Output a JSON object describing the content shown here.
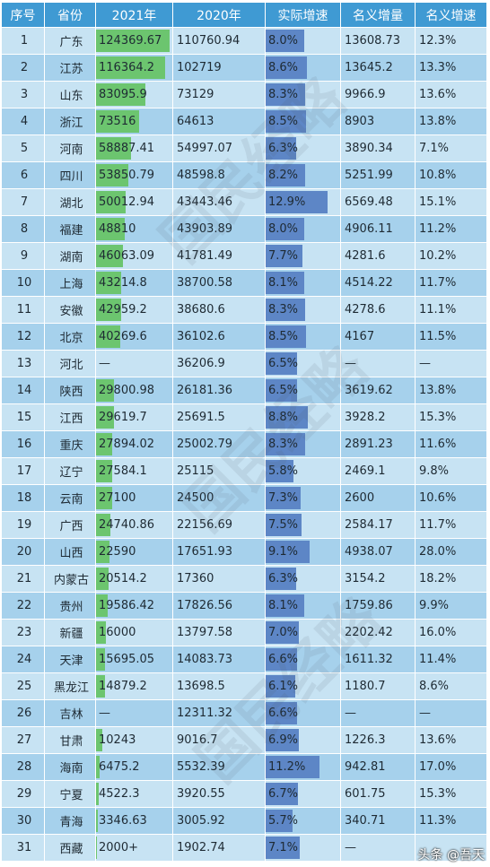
{
  "headers": [
    "序号",
    "省份",
    "2021年",
    "2020年",
    "实际增速",
    "名义增量",
    "名义增速"
  ],
  "rows": [
    {
      "idx": "1",
      "prov": "广东",
      "y21": "124369.67",
      "y21v": 124369.67,
      "y20": "110760.94",
      "real": "8.0%",
      "realv": 8.0,
      "nom": "13608.73",
      "nrate": "12.3%"
    },
    {
      "idx": "2",
      "prov": "江苏",
      "y21": "116364.2",
      "y21v": 116364.2,
      "y20": "102719",
      "real": "8.6%",
      "realv": 8.6,
      "nom": "13645.2",
      "nrate": "13.3%"
    },
    {
      "idx": "3",
      "prov": "山东",
      "y21": "83095.9",
      "y21v": 83095.9,
      "y20": "73129",
      "real": "8.3%",
      "realv": 8.3,
      "nom": "9966.9",
      "nrate": "13.6%"
    },
    {
      "idx": "4",
      "prov": "浙江",
      "y21": "73516",
      "y21v": 73516,
      "y20": "64613",
      "real": "8.5%",
      "realv": 8.5,
      "nom": "8903",
      "nrate": "13.8%"
    },
    {
      "idx": "5",
      "prov": "河南",
      "y21": "58887.41",
      "y21v": 58887.41,
      "y20": "54997.07",
      "real": "6.3%",
      "realv": 6.3,
      "nom": "3890.34",
      "nrate": "7.1%"
    },
    {
      "idx": "6",
      "prov": "四川",
      "y21": "53850.79",
      "y21v": 53850.79,
      "y20": "48598.8",
      "real": "8.2%",
      "realv": 8.2,
      "nom": "5251.99",
      "nrate": "10.8%"
    },
    {
      "idx": "7",
      "prov": "湖北",
      "y21": "50012.94",
      "y21v": 50012.94,
      "y20": "43443.46",
      "real": "12.9%",
      "realv": 12.9,
      "nom": "6569.48",
      "nrate": "15.1%"
    },
    {
      "idx": "8",
      "prov": "福建",
      "y21": "48810",
      "y21v": 48810,
      "y20": "43903.89",
      "real": "8.0%",
      "realv": 8.0,
      "nom": "4906.11",
      "nrate": "11.2%"
    },
    {
      "idx": "9",
      "prov": "湖南",
      "y21": "46063.09",
      "y21v": 46063.09,
      "y20": "41781.49",
      "real": "7.7%",
      "realv": 7.7,
      "nom": "4281.6",
      "nrate": "10.2%"
    },
    {
      "idx": "10",
      "prov": "上海",
      "y21": "43214.8",
      "y21v": 43214.8,
      "y20": "38700.58",
      "real": "8.1%",
      "realv": 8.1,
      "nom": "4514.22",
      "nrate": "11.7%"
    },
    {
      "idx": "11",
      "prov": "安徽",
      "y21": "42959.2",
      "y21v": 42959.2,
      "y20": "38680.6",
      "real": "8.3%",
      "realv": 8.3,
      "nom": "4278.6",
      "nrate": "11.1%"
    },
    {
      "idx": "12",
      "prov": "北京",
      "y21": "40269.6",
      "y21v": 40269.6,
      "y20": "36102.6",
      "real": "8.5%",
      "realv": 8.5,
      "nom": "4167",
      "nrate": "11.5%"
    },
    {
      "idx": "13",
      "prov": "河北",
      "y21": "—",
      "y21v": 0,
      "y20": "36206.9",
      "real": "6.5%",
      "realv": 6.5,
      "nom": "—",
      "nrate": "—"
    },
    {
      "idx": "14",
      "prov": "陕西",
      "y21": "29800.98",
      "y21v": 29800.98,
      "y20": "26181.36",
      "real": "6.5%",
      "realv": 6.5,
      "nom": "3619.62",
      "nrate": "13.8%"
    },
    {
      "idx": "15",
      "prov": "江西",
      "y21": "29619.7",
      "y21v": 29619.7,
      "y20": "25691.5",
      "real": "8.8%",
      "realv": 8.8,
      "nom": "3928.2",
      "nrate": "15.3%"
    },
    {
      "idx": "16",
      "prov": "重庆",
      "y21": "27894.02",
      "y21v": 27894.02,
      "y20": "25002.79",
      "real": "8.3%",
      "realv": 8.3,
      "nom": "2891.23",
      "nrate": "11.6%"
    },
    {
      "idx": "17",
      "prov": "辽宁",
      "y21": "27584.1",
      "y21v": 27584.1,
      "y20": "25115",
      "real": "5.8%",
      "realv": 5.8,
      "nom": "2469.1",
      "nrate": "9.8%"
    },
    {
      "idx": "18",
      "prov": "云南",
      "y21": "27100",
      "y21v": 27100,
      "y20": "24500",
      "real": "7.3%",
      "realv": 7.3,
      "nom": "2600",
      "nrate": "10.6%"
    },
    {
      "idx": "19",
      "prov": "广西",
      "y21": "24740.86",
      "y21v": 24740.86,
      "y20": "22156.69",
      "real": "7.5%",
      "realv": 7.5,
      "nom": "2584.17",
      "nrate": "11.7%"
    },
    {
      "idx": "20",
      "prov": "山西",
      "y21": "22590",
      "y21v": 22590,
      "y20": "17651.93",
      "real": "9.1%",
      "realv": 9.1,
      "nom": "4938.07",
      "nrate": "28.0%"
    },
    {
      "idx": "21",
      "prov": "内蒙古",
      "y21": "20514.2",
      "y21v": 20514.2,
      "y20": "17360",
      "real": "6.3%",
      "realv": 6.3,
      "nom": "3154.2",
      "nrate": "18.2%"
    },
    {
      "idx": "22",
      "prov": "贵州",
      "y21": "19586.42",
      "y21v": 19586.42,
      "y20": "17826.56",
      "real": "8.1%",
      "realv": 8.1,
      "nom": "1759.86",
      "nrate": "9.9%"
    },
    {
      "idx": "23",
      "prov": "新疆",
      "y21": "16000",
      "y21v": 16000,
      "y20": "13797.58",
      "real": "7.0%",
      "realv": 7.0,
      "nom": "2202.42",
      "nrate": "16.0%"
    },
    {
      "idx": "24",
      "prov": "天津",
      "y21": "15695.05",
      "y21v": 15695.05,
      "y20": "14083.73",
      "real": "6.6%",
      "realv": 6.6,
      "nom": "1611.32",
      "nrate": "11.4%"
    },
    {
      "idx": "25",
      "prov": "黑龙江",
      "y21": "14879.2",
      "y21v": 14879.2,
      "y20": "13698.5",
      "real": "6.1%",
      "realv": 6.1,
      "nom": "1180.7",
      "nrate": "8.6%"
    },
    {
      "idx": "26",
      "prov": "吉林",
      "y21": "—",
      "y21v": 0,
      "y20": "12311.32",
      "real": "6.6%",
      "realv": 6.6,
      "nom": "—",
      "nrate": "—"
    },
    {
      "idx": "27",
      "prov": "甘肃",
      "y21": "10243",
      "y21v": 10243,
      "y20": "9016.7",
      "real": "6.9%",
      "realv": 6.9,
      "nom": "1226.3",
      "nrate": "13.6%"
    },
    {
      "idx": "28",
      "prov": "海南",
      "y21": "6475.2",
      "y21v": 6475.2,
      "y20": "5532.39",
      "real": "11.2%",
      "realv": 11.2,
      "nom": "942.81",
      "nrate": "17.0%"
    },
    {
      "idx": "29",
      "prov": "宁夏",
      "y21": "4522.3",
      "y21v": 4522.3,
      "y20": "3920.55",
      "real": "6.7%",
      "realv": 6.7,
      "nom": "601.75",
      "nrate": "15.3%"
    },
    {
      "idx": "30",
      "prov": "青海",
      "y21": "3346.63",
      "y21v": 3346.63,
      "y20": "3005.92",
      "real": "5.7%",
      "realv": 5.7,
      "nom": "340.71",
      "nrate": "11.3%"
    },
    {
      "idx": "31",
      "prov": "西藏",
      "y21": "2000+",
      "y21v": 2000,
      "y20": "1902.74",
      "real": "7.1%",
      "realv": 7.1,
      "nom": "—",
      "nrate": ""
    }
  ],
  "bar_max": {
    "y21": 124369.67,
    "real": 12.9
  },
  "watermark": "国民经略",
  "credit": "头条 @吾天",
  "colors": {
    "header": "#3f9ad3",
    "row_light": "#c7e3f3",
    "row_dark": "#a6d1ec",
    "bar_green": "#6cc56f",
    "bar_blue": "#5d86c6"
  }
}
